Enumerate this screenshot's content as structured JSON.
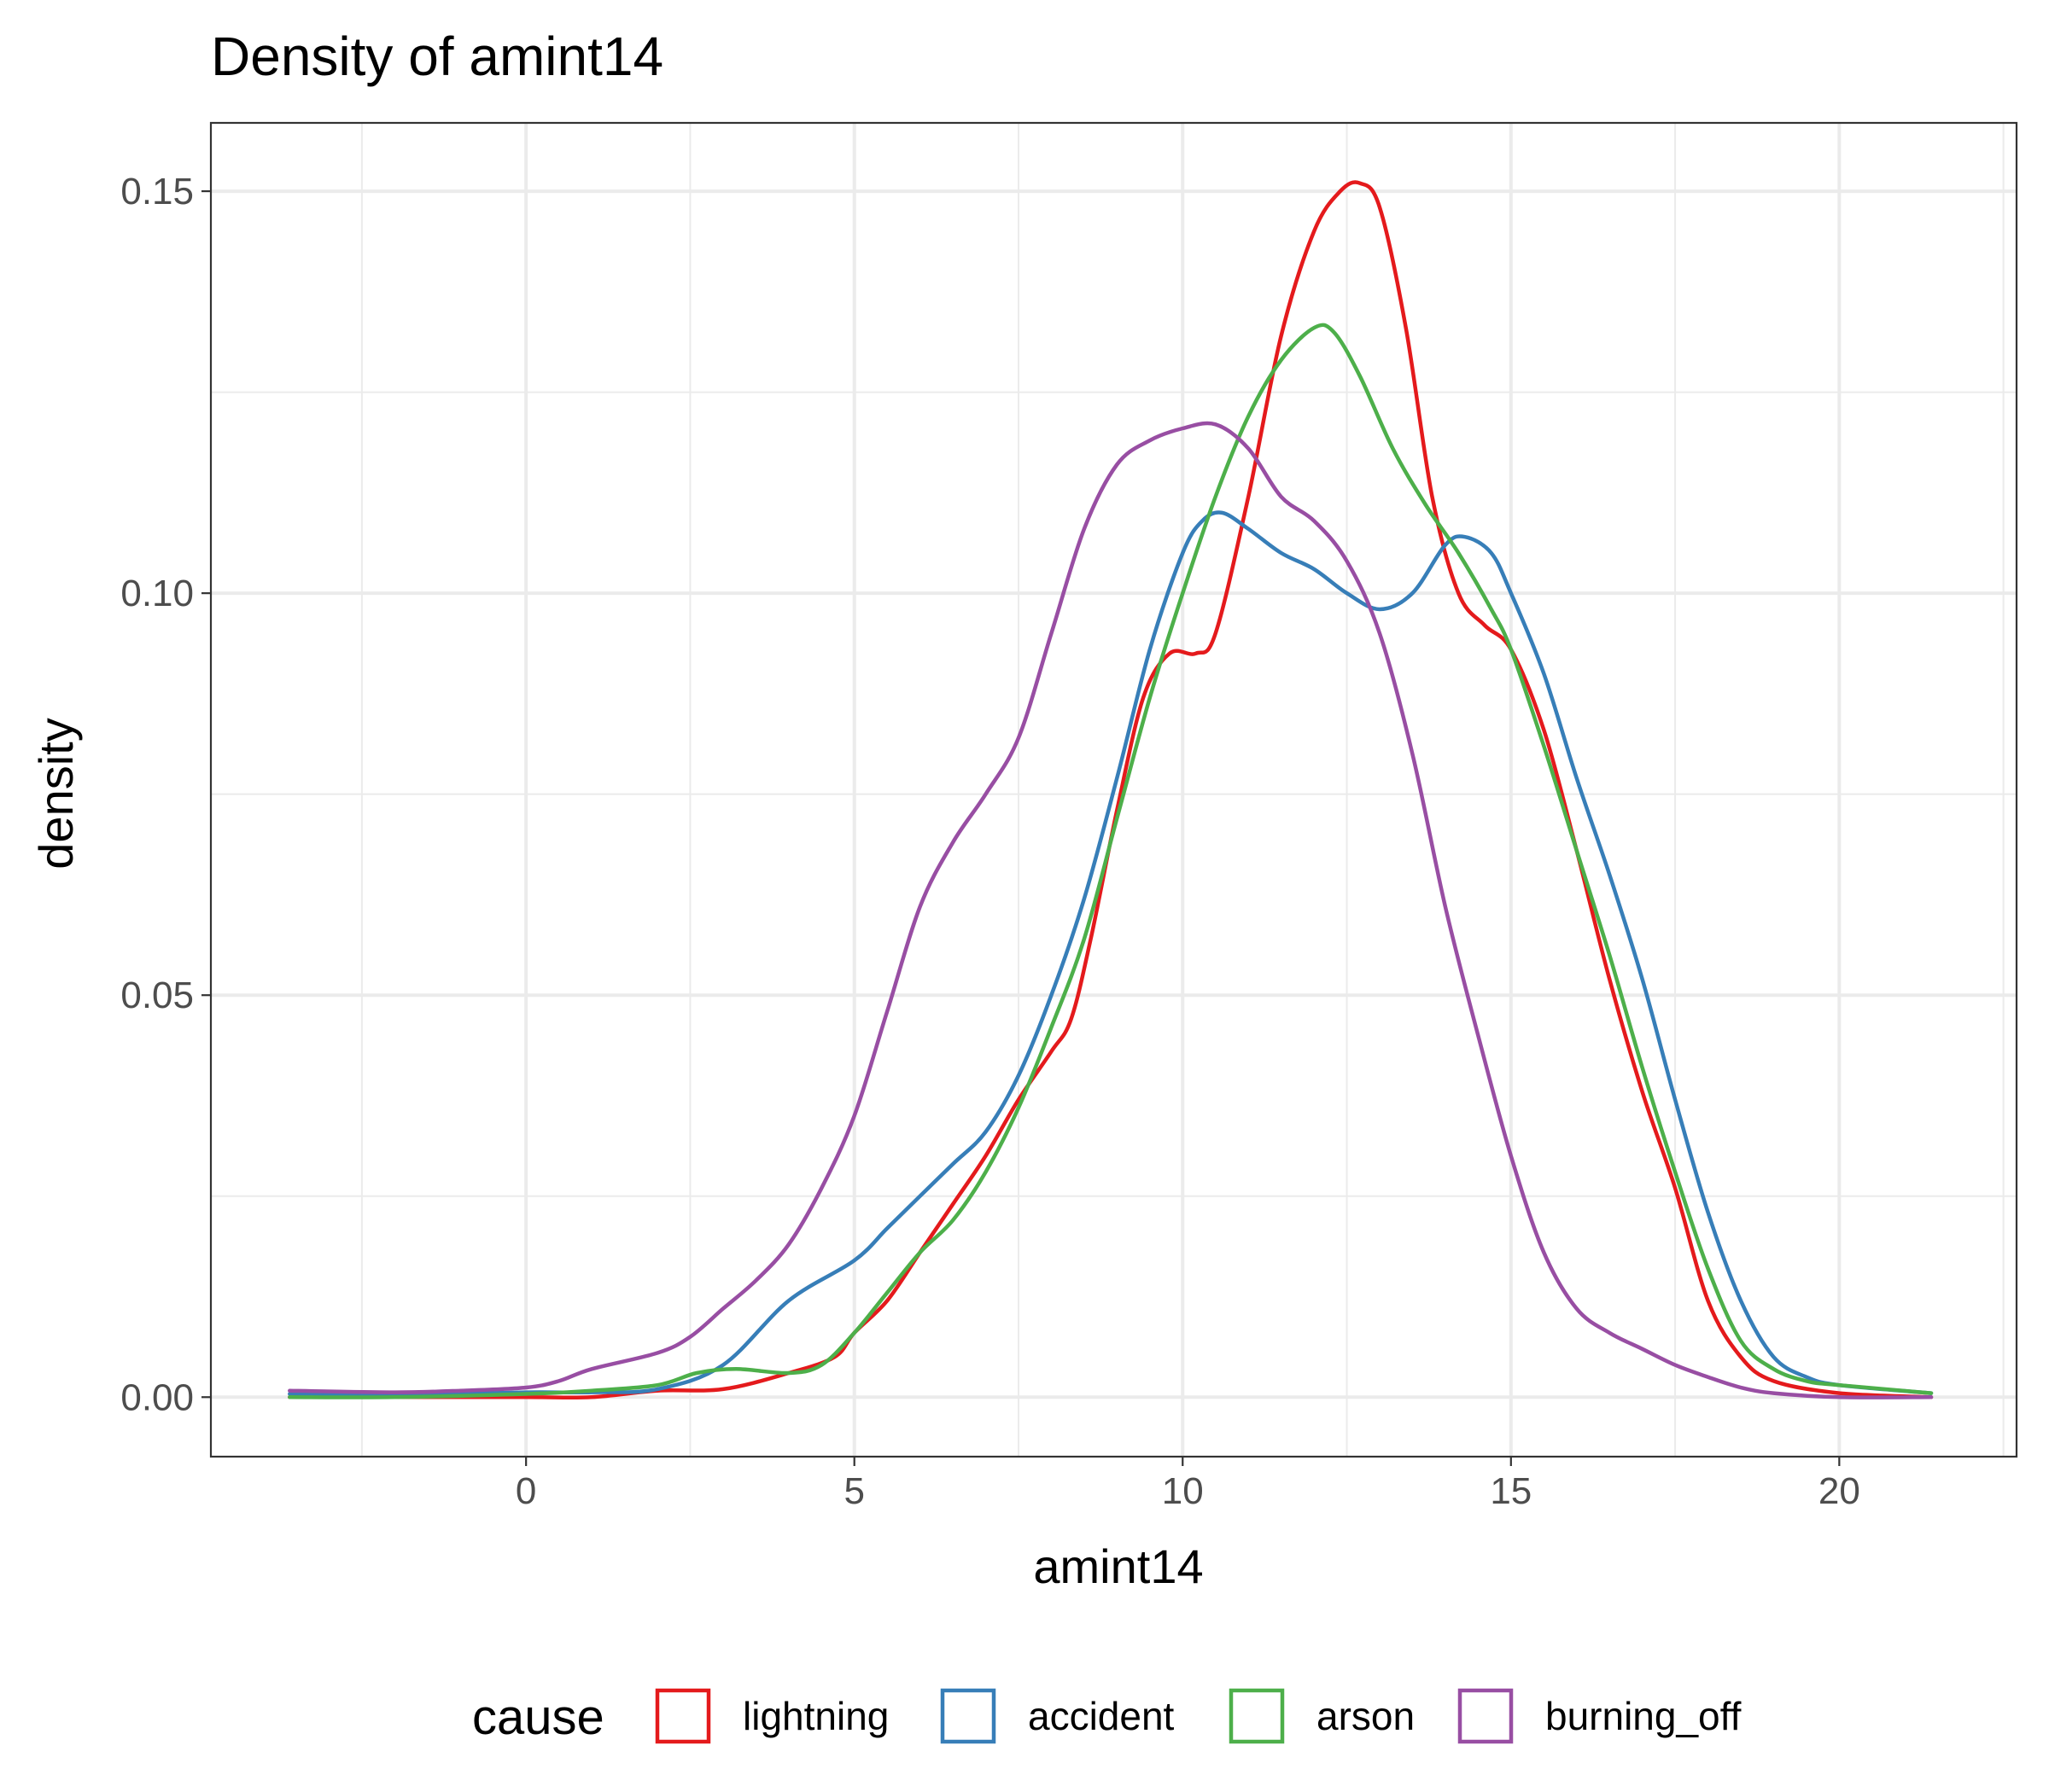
{
  "chart_data": {
    "type": "line",
    "title": "Density of amint14",
    "xlabel": "amint14",
    "ylabel": "density",
    "xlim": [
      -4.8,
      22.7
    ],
    "ylim": [
      -0.0074,
      0.1585
    ],
    "x_ticks": [
      0,
      5,
      10,
      15,
      20
    ],
    "x_tick_labels": [
      "0",
      "5",
      "10",
      "15",
      "20"
    ],
    "y_ticks": [
      0.0,
      0.05,
      0.1,
      0.15
    ],
    "y_tick_labels": [
      "0.00",
      "0.05",
      "0.10",
      "0.15"
    ],
    "grid": true,
    "legend": {
      "title": "cause",
      "position": "bottom"
    },
    "series": [
      {
        "name": "lightning",
        "color": "#E41A1C",
        "points": [
          [
            -3.6,
            0.0
          ],
          [
            -2,
            0.0
          ],
          [
            0,
            0.0
          ],
          [
            1,
            0.0
          ],
          [
            2,
            0.0008
          ],
          [
            3,
            0.001
          ],
          [
            4,
            0.003
          ],
          [
            4.7,
            0.005
          ],
          [
            5,
            0.008
          ],
          [
            5.5,
            0.012
          ],
          [
            6,
            0.018
          ],
          [
            6.5,
            0.024
          ],
          [
            7,
            0.03
          ],
          [
            7.5,
            0.037
          ],
          [
            8,
            0.043
          ],
          [
            8.3,
            0.047
          ],
          [
            8.6,
            0.057
          ],
          [
            9,
            0.073
          ],
          [
            9.4,
            0.087
          ],
          [
            9.8,
            0.0925
          ],
          [
            10.2,
            0.0925
          ],
          [
            10.5,
            0.095
          ],
          [
            11,
            0.112
          ],
          [
            11.5,
            0.132
          ],
          [
            12,
            0.145
          ],
          [
            12.4,
            0.15
          ],
          [
            12.7,
            0.151
          ],
          [
            13,
            0.148
          ],
          [
            13.4,
            0.133
          ],
          [
            13.8,
            0.112
          ],
          [
            14.2,
            0.1
          ],
          [
            14.6,
            0.096
          ],
          [
            15,
            0.093
          ],
          [
            15.5,
            0.083
          ],
          [
            16,
            0.068
          ],
          [
            16.5,
            0.052
          ],
          [
            17,
            0.038
          ],
          [
            17.5,
            0.026
          ],
          [
            18,
            0.012
          ],
          [
            18.5,
            0.005
          ],
          [
            19,
            0.002
          ],
          [
            20,
            0.0005
          ],
          [
            21.4,
            0.0
          ]
        ]
      },
      {
        "name": "accident",
        "color": "#377EB8",
        "points": [
          [
            -3.6,
            0.0004
          ],
          [
            -2,
            0.0003
          ],
          [
            0,
            0.0006
          ],
          [
            1,
            0.0006
          ],
          [
            2,
            0.001
          ],
          [
            3,
            0.004
          ],
          [
            4,
            0.012
          ],
          [
            5,
            0.017
          ],
          [
            5.5,
            0.021
          ],
          [
            6,
            0.025
          ],
          [
            6.5,
            0.029
          ],
          [
            7,
            0.033
          ],
          [
            7.5,
            0.04
          ],
          [
            8,
            0.05
          ],
          [
            8.5,
            0.062
          ],
          [
            9,
            0.077
          ],
          [
            9.5,
            0.093
          ],
          [
            10,
            0.105
          ],
          [
            10.3,
            0.109
          ],
          [
            10.6,
            0.11
          ],
          [
            11,
            0.108
          ],
          [
            11.5,
            0.105
          ],
          [
            12,
            0.103
          ],
          [
            12.5,
            0.1
          ],
          [
            13,
            0.098
          ],
          [
            13.5,
            0.1
          ],
          [
            14,
            0.106
          ],
          [
            14.3,
            0.107
          ],
          [
            14.7,
            0.105
          ],
          [
            15,
            0.1
          ],
          [
            15.5,
            0.09
          ],
          [
            16,
            0.077
          ],
          [
            16.5,
            0.065
          ],
          [
            17,
            0.052
          ],
          [
            17.5,
            0.037
          ],
          [
            18,
            0.023
          ],
          [
            18.5,
            0.012
          ],
          [
            19,
            0.005
          ],
          [
            19.5,
            0.0025
          ],
          [
            20,
            0.0015
          ],
          [
            21.4,
            0.0005
          ]
        ]
      },
      {
        "name": "arson",
        "color": "#4DAF4A",
        "points": [
          [
            -3.6,
            0.0
          ],
          [
            -2,
            0.0
          ],
          [
            0,
            0.0004
          ],
          [
            1,
            0.0008
          ],
          [
            2,
            0.0015
          ],
          [
            2.6,
            0.003
          ],
          [
            3.2,
            0.0035
          ],
          [
            4,
            0.003
          ],
          [
            4.5,
            0.004
          ],
          [
            5,
            0.008
          ],
          [
            5.5,
            0.013
          ],
          [
            6,
            0.018
          ],
          [
            6.5,
            0.022
          ],
          [
            7,
            0.028
          ],
          [
            7.5,
            0.036
          ],
          [
            8,
            0.046
          ],
          [
            8.5,
            0.057
          ],
          [
            9,
            0.072
          ],
          [
            9.5,
            0.087
          ],
          [
            10,
            0.1
          ],
          [
            10.5,
            0.112
          ],
          [
            11,
            0.122
          ],
          [
            11.5,
            0.129
          ],
          [
            12,
            0.133
          ],
          [
            12.3,
            0.1325
          ],
          [
            12.7,
            0.127
          ],
          [
            13.2,
            0.118
          ],
          [
            13.7,
            0.111
          ],
          [
            14.2,
            0.105
          ],
          [
            14.7,
            0.098
          ],
          [
            15,
            0.093
          ],
          [
            15.5,
            0.081
          ],
          [
            16,
            0.068
          ],
          [
            16.5,
            0.055
          ],
          [
            17,
            0.041
          ],
          [
            17.5,
            0.028
          ],
          [
            18,
            0.016
          ],
          [
            18.5,
            0.007
          ],
          [
            19,
            0.0035
          ],
          [
            19.5,
            0.002
          ],
          [
            20,
            0.0015
          ],
          [
            21.4,
            0.0005
          ]
        ]
      },
      {
        "name": "burning_off",
        "color": "#984EA3",
        "points": [
          [
            -3.6,
            0.0008
          ],
          [
            -2,
            0.0006
          ],
          [
            -1,
            0.0008
          ],
          [
            0,
            0.0012
          ],
          [
            0.5,
            0.002
          ],
          [
            1,
            0.0035
          ],
          [
            2,
            0.0055
          ],
          [
            2.5,
            0.0075
          ],
          [
            3,
            0.011
          ],
          [
            3.5,
            0.0145
          ],
          [
            4,
            0.019
          ],
          [
            4.5,
            0.026
          ],
          [
            5,
            0.035
          ],
          [
            5.5,
            0.048
          ],
          [
            6,
            0.061
          ],
          [
            6.5,
            0.069
          ],
          [
            7,
            0.075
          ],
          [
            7.5,
            0.082
          ],
          [
            8,
            0.095
          ],
          [
            8.5,
            0.108
          ],
          [
            9,
            0.116
          ],
          [
            9.5,
            0.119
          ],
          [
            10,
            0.1205
          ],
          [
            10.5,
            0.121
          ],
          [
            11,
            0.118
          ],
          [
            11.5,
            0.112
          ],
          [
            12,
            0.109
          ],
          [
            12.5,
            0.104
          ],
          [
            13,
            0.095
          ],
          [
            13.5,
            0.08
          ],
          [
            14,
            0.061
          ],
          [
            14.5,
            0.045
          ],
          [
            15,
            0.03
          ],
          [
            15.5,
            0.018
          ],
          [
            16,
            0.011
          ],
          [
            16.5,
            0.008
          ],
          [
            17,
            0.006
          ],
          [
            17.5,
            0.004
          ],
          [
            18,
            0.0025
          ],
          [
            18.5,
            0.0012
          ],
          [
            19,
            0.0005
          ],
          [
            20,
            0.0
          ],
          [
            21.4,
            0.0
          ]
        ]
      }
    ]
  }
}
